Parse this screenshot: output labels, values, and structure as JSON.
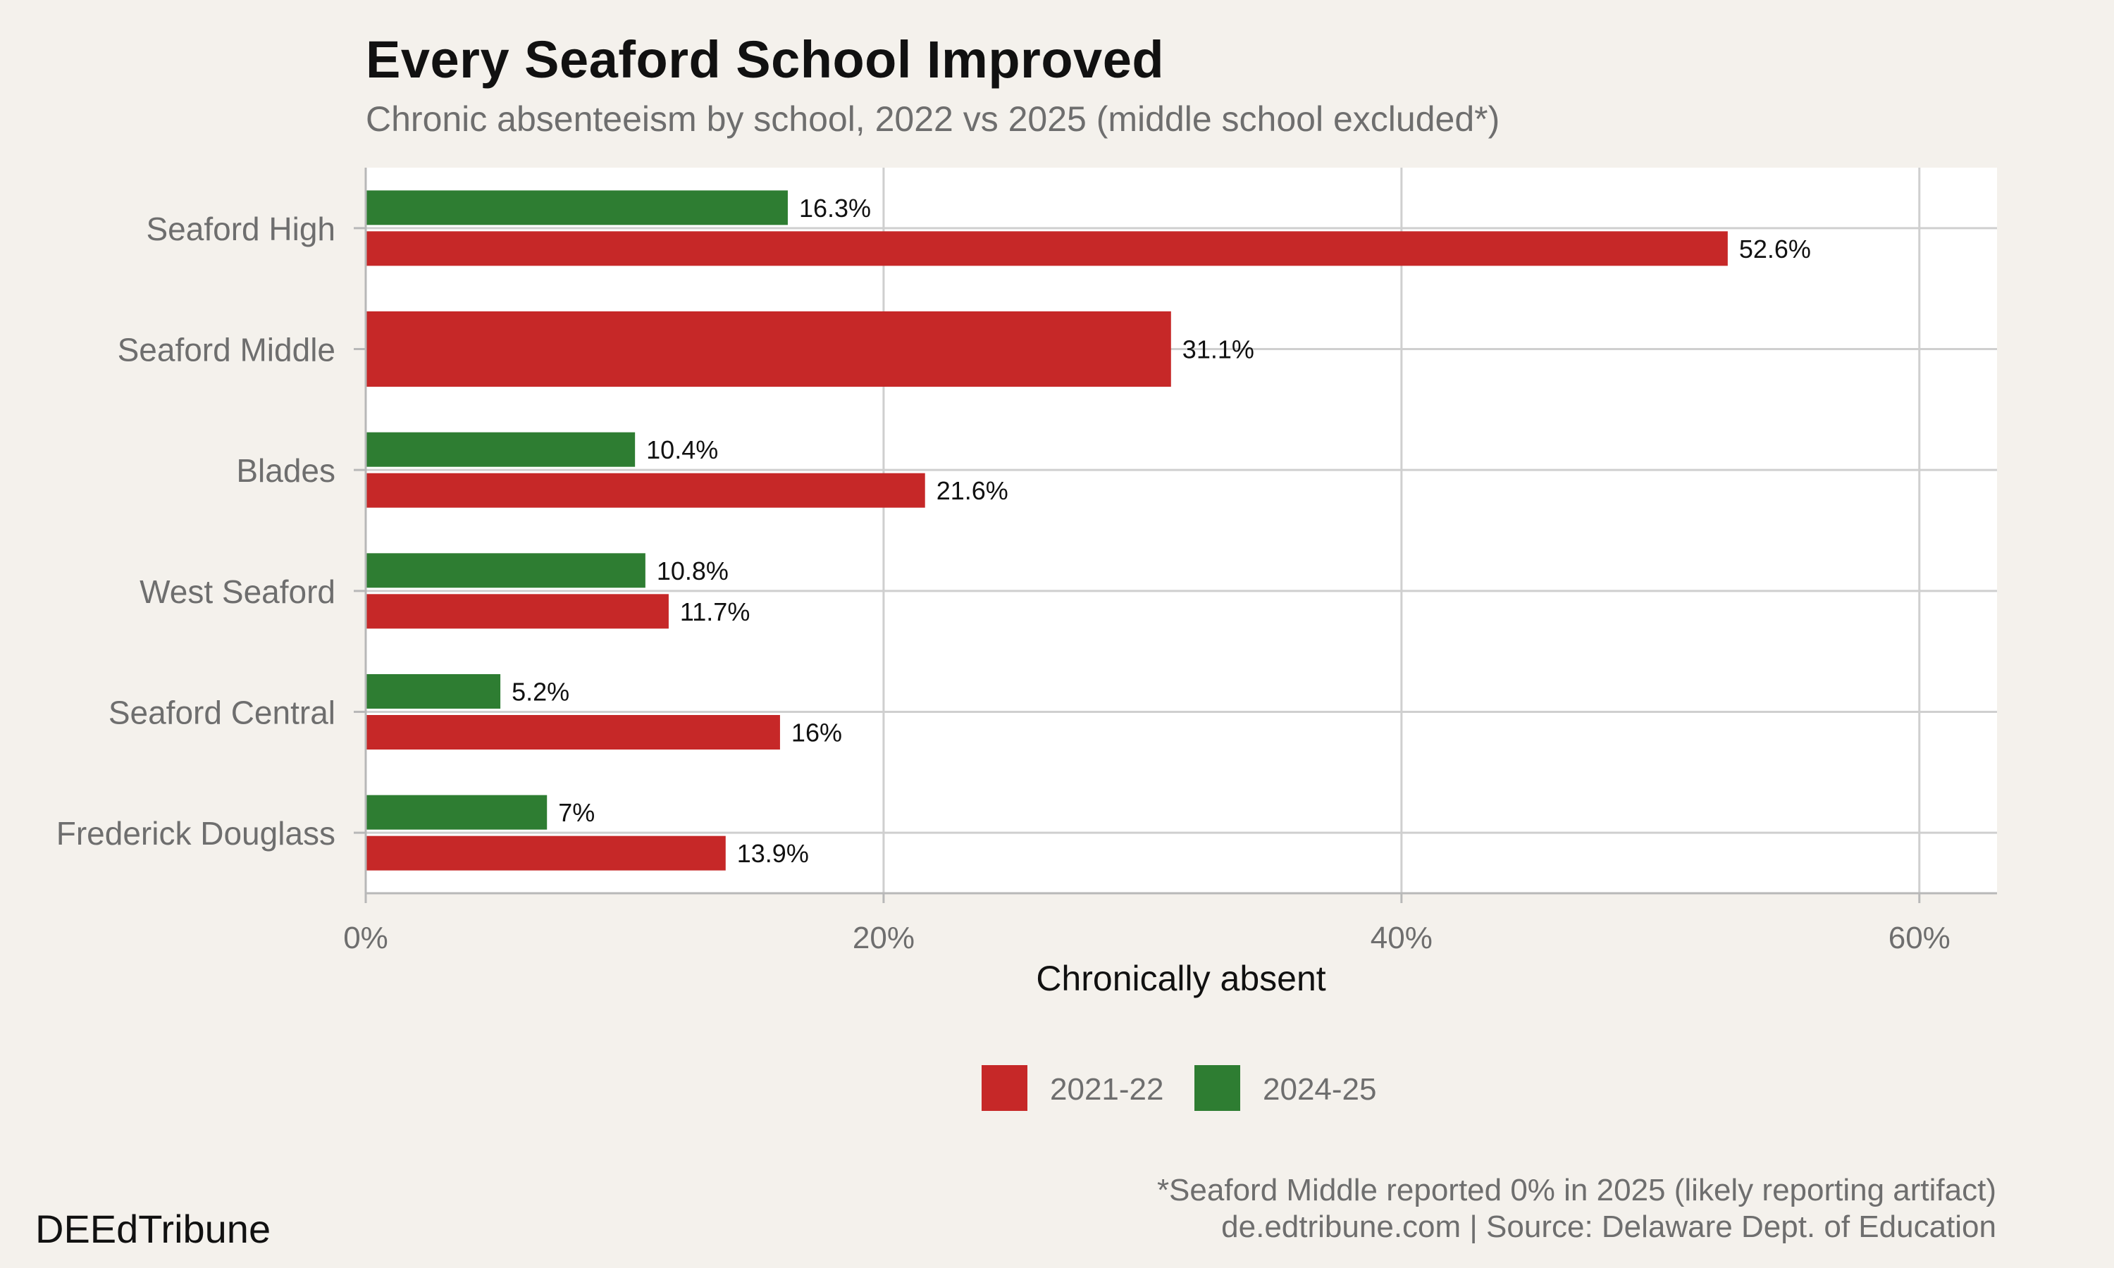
{
  "header": {
    "title": "Every Seaford School Improved",
    "subtitle": "Chronic absenteeism by school, 2022 vs 2025 (middle school excluded*)"
  },
  "chart_data": {
    "type": "bar",
    "orientation": "horizontal",
    "categories": [
      "Seaford High",
      "Seaford Middle",
      "Blades",
      "West Seaford",
      "Seaford Central",
      "Frederick Douglass"
    ],
    "series": [
      {
        "name": "2021-22",
        "color": "#c62828",
        "values": [
          52.6,
          31.1,
          21.6,
          11.7,
          16,
          13.9
        ],
        "labels": [
          "52.6%",
          "31.1%",
          "21.6%",
          "11.7%",
          "16%",
          "13.9%"
        ]
      },
      {
        "name": "2024-25",
        "color": "#2e7d32",
        "values": [
          16.3,
          null,
          10.4,
          10.8,
          5.2,
          7
        ],
        "labels": [
          "16.3%",
          "",
          "10.4%",
          "10.8%",
          "5.2%",
          "7%"
        ]
      }
    ],
    "xlabel": "Chronically absent",
    "ylabel": "",
    "xlim": [
      0,
      63
    ],
    "xticks": [
      0,
      20,
      40,
      60
    ],
    "xtick_labels": [
      "0%",
      "20%",
      "40%",
      "60%"
    ],
    "grid": true,
    "legend_position": "bottom",
    "panel_background": "#ffffff",
    "page_background": "#f4f1ec"
  },
  "footer": {
    "note": "*Seaford Middle reported 0% in 2025 (likely reporting artifact)",
    "source": "de.edtribune.com | Source: Delaware Dept. of Education",
    "brand": "DEEdTribune"
  }
}
